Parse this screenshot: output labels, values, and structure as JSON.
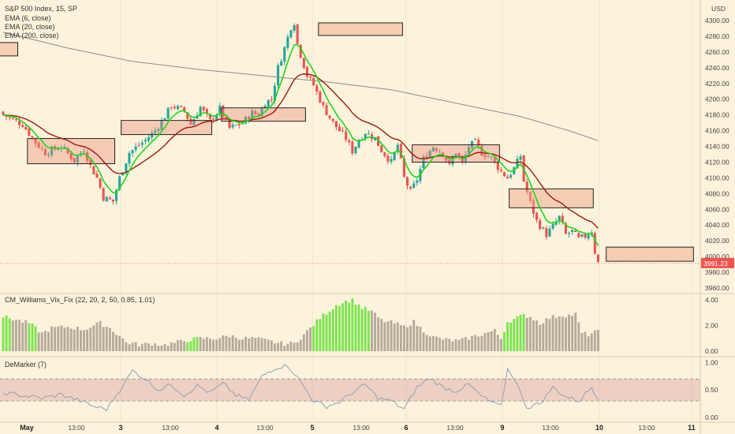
{
  "chart_data": {
    "type": "candlestick",
    "title": "S&P 500 Index, 15, SP",
    "currency": "USD",
    "price_axis": {
      "ticks": [
        "4300.00",
        "4280.00",
        "4260.00",
        "4240.00",
        "4220.00",
        "4200.00",
        "4180.00",
        "4160.00",
        "4140.00",
        "4120.00",
        "4100.00",
        "4080.00",
        "4060.00",
        "4040.00",
        "4020.00",
        "4000.00",
        "3980.00",
        "3960.00"
      ],
      "min": 3950,
      "max": 4320,
      "last_price": 3991.23,
      "last_price_label": "3991.23"
    },
    "x_labels": [
      "May",
      "13:00",
      "3",
      "13:00",
      "4",
      "13:00",
      "5",
      "13:00",
      "6",
      "13:00",
      "9",
      "13:00",
      "10",
      "13:00",
      "11"
    ],
    "session_labels": [
      "May",
      "3",
      "4",
      "5",
      "6",
      "9",
      "10",
      "11"
    ],
    "indicators": [
      {
        "name": "EMA (6, close)",
        "color": "#22d31d"
      },
      {
        "name": "EMA (20, close)",
        "color": "#9b1c0e"
      },
      {
        "name": "EMA (200, close)",
        "color": "#8c8c8c"
      }
    ],
    "up_color": "#26a69a",
    "down_color": "#ef5350",
    "candle_anchors": [
      [
        0,
        4180
      ],
      [
        6,
        4168
      ],
      [
        10,
        4145
      ],
      [
        13,
        4132
      ],
      [
        18,
        4140
      ],
      [
        22,
        4122
      ],
      [
        25,
        4137
      ],
      [
        27,
        4115
      ],
      [
        29,
        4100
      ],
      [
        31,
        4075
      ],
      [
        34,
        4070
      ],
      [
        36,
        4100
      ],
      [
        39,
        4132
      ],
      [
        44,
        4148
      ],
      [
        47,
        4160
      ],
      [
        50,
        4178
      ],
      [
        52,
        4192
      ],
      [
        56,
        4185
      ],
      [
        58,
        4168
      ],
      [
        61,
        4190
      ],
      [
        64,
        4172
      ],
      [
        67,
        4188
      ],
      [
        70,
        4163
      ],
      [
        74,
        4170
      ],
      [
        77,
        4183
      ],
      [
        79,
        4180
      ],
      [
        81,
        4196
      ],
      [
        83,
        4200
      ],
      [
        85,
        4240
      ],
      [
        87,
        4265
      ],
      [
        89,
        4292
      ],
      [
        90,
        4298
      ],
      [
        91,
        4270
      ],
      [
        94,
        4230
      ],
      [
        96,
        4218
      ],
      [
        99,
        4190
      ],
      [
        102,
        4170
      ],
      [
        106,
        4150
      ],
      [
        108,
        4134
      ],
      [
        110,
        4148
      ],
      [
        112,
        4158
      ],
      [
        115,
        4150
      ],
      [
        117,
        4135
      ],
      [
        120,
        4120
      ],
      [
        122,
        4142
      ],
      [
        124,
        4100
      ],
      [
        126,
        4082
      ],
      [
        128,
        4098
      ],
      [
        130,
        4124
      ],
      [
        133,
        4140
      ],
      [
        136,
        4132
      ],
      [
        138,
        4115
      ],
      [
        140,
        4133
      ],
      [
        142,
        4118
      ],
      [
        144,
        4140
      ],
      [
        146,
        4145
      ],
      [
        148,
        4132
      ],
      [
        151,
        4125
      ],
      [
        154,
        4108
      ],
      [
        156,
        4100
      ],
      [
        158,
        4112
      ],
      [
        160,
        4128
      ],
      [
        161,
        4096
      ],
      [
        163,
        4068
      ],
      [
        165,
        4045
      ],
      [
        168,
        4028
      ],
      [
        170,
        4038
      ],
      [
        172,
        4050
      ],
      [
        174,
        4028
      ],
      [
        176,
        4032
      ],
      [
        178,
        4022
      ],
      [
        180,
        4026
      ],
      [
        182,
        4033
      ],
      [
        183,
        4006
      ],
      [
        184,
        3992
      ]
    ],
    "ema200_anchors": [
      [
        0,
        4285
      ],
      [
        20,
        4265
      ],
      [
        40,
        4248
      ],
      [
        60,
        4238
      ],
      [
        80,
        4230
      ],
      [
        100,
        4222
      ],
      [
        120,
        4212
      ],
      [
        140,
        4195
      ],
      [
        160,
        4178
      ],
      [
        175,
        4160
      ],
      [
        185,
        4146
      ]
    ],
    "boxes": [
      {
        "start": 8,
        "end": 35,
        "top": 4150,
        "bottom": 4118,
        "style": "range"
      },
      {
        "start": 37,
        "end": 65,
        "top": 4173,
        "bottom": 4155,
        "style": "range"
      },
      {
        "start": 68,
        "end": 94,
        "top": 4189,
        "bottom": 4172,
        "style": "range"
      },
      {
        "start": 98,
        "end": 124,
        "top": 4297,
        "bottom": 4281,
        "style": "target"
      },
      {
        "start": -2,
        "end": 5,
        "top": 4272,
        "bottom": 4255,
        "style": "target"
      },
      {
        "start": 127,
        "end": 154,
        "top": 4142,
        "bottom": 4120,
        "style": "range"
      },
      {
        "start": 157,
        "end": 183,
        "top": 4086,
        "bottom": 4062,
        "style": "target"
      },
      {
        "start": 187,
        "end": 214,
        "top": 4012,
        "bottom": 3994,
        "style": "target"
      }
    ],
    "vix": {
      "label": "CM_Williams_Vix_Fix (22, 20, 2, 50, 0.85, 1.01)",
      "axis_ticks": [
        "4.00",
        "2.00",
        "0.00"
      ],
      "min": 0,
      "max": 4.2,
      "anchors": [
        [
          0,
          2.7
        ],
        [
          8,
          2.2
        ],
        [
          12,
          1.4
        ],
        [
          15,
          1.8
        ],
        [
          20,
          1.9
        ],
        [
          25,
          1.7
        ],
        [
          28,
          2.0
        ],
        [
          30,
          2.2
        ],
        [
          33,
          1.8
        ],
        [
          36,
          1.2
        ],
        [
          38,
          0.7
        ],
        [
          42,
          0.5
        ],
        [
          46,
          0.6
        ],
        [
          50,
          0.5
        ],
        [
          54,
          0.7
        ],
        [
          58,
          0.9
        ],
        [
          61,
          1.0
        ],
        [
          66,
          1.0
        ],
        [
          70,
          1.2
        ],
        [
          74,
          1.0
        ],
        [
          78,
          1.0
        ],
        [
          82,
          0.8
        ],
        [
          86,
          0.6
        ],
        [
          90,
          0.6
        ],
        [
          93,
          1.3
        ],
        [
          95,
          1.8
        ],
        [
          98,
          2.6
        ],
        [
          101,
          3.2
        ],
        [
          103,
          3.6
        ],
        [
          106,
          3.9
        ],
        [
          108,
          4.0
        ],
        [
          111,
          3.4
        ],
        [
          114,
          3.1
        ],
        [
          117,
          2.4
        ],
        [
          121,
          2.2
        ],
        [
          124,
          1.9
        ],
        [
          127,
          2.3
        ],
        [
          130,
          1.6
        ],
        [
          133,
          1.1
        ],
        [
          137,
          0.9
        ],
        [
          141,
          0.8
        ],
        [
          145,
          1.1
        ],
        [
          149,
          1.4
        ],
        [
          152,
          1.6
        ],
        [
          154,
          1.0
        ],
        [
          156,
          2.3
        ],
        [
          159,
          2.6
        ],
        [
          161,
          2.8
        ],
        [
          163,
          2.7
        ],
        [
          166,
          2.2
        ],
        [
          169,
          2.6
        ],
        [
          172,
          2.8
        ],
        [
          175,
          2.8
        ],
        [
          177,
          2.9
        ],
        [
          179,
          1.4
        ],
        [
          181,
          1.3
        ],
        [
          183,
          1.5
        ]
      ],
      "green_ranges": [
        [
          0,
          2
        ],
        [
          8,
          10
        ],
        [
          57,
          60
        ],
        [
          96,
          113
        ],
        [
          155,
          161
        ]
      ],
      "green_color": "#7be34f",
      "gray_color": "#b5aa9a"
    },
    "demarker": {
      "label": "DeMarker (7)",
      "axis_ticks": [
        "1.00",
        "0.50",
        "0.00"
      ],
      "min": 0,
      "max": 1.05,
      "band": [
        0.3,
        0.7
      ],
      "anchors": [
        [
          0,
          0.45
        ],
        [
          6,
          0.4
        ],
        [
          12,
          0.35
        ],
        [
          18,
          0.42
        ],
        [
          24,
          0.3
        ],
        [
          28,
          0.2
        ],
        [
          32,
          0.15
        ],
        [
          36,
          0.5
        ],
        [
          40,
          0.85
        ],
        [
          44,
          0.7
        ],
        [
          48,
          0.5
        ],
        [
          52,
          0.6
        ],
        [
          56,
          0.4
        ],
        [
          60,
          0.58
        ],
        [
          64,
          0.45
        ],
        [
          68,
          0.62
        ],
        [
          72,
          0.4
        ],
        [
          76,
          0.32
        ],
        [
          80,
          0.75
        ],
        [
          84,
          0.9
        ],
        [
          88,
          0.95
        ],
        [
          92,
          0.65
        ],
        [
          96,
          0.3
        ],
        [
          100,
          0.2
        ],
        [
          104,
          0.28
        ],
        [
          108,
          0.45
        ],
        [
          112,
          0.6
        ],
        [
          116,
          0.35
        ],
        [
          120,
          0.3
        ],
        [
          124,
          0.15
        ],
        [
          128,
          0.55
        ],
        [
          132,
          0.72
        ],
        [
          136,
          0.55
        ],
        [
          140,
          0.48
        ],
        [
          144,
          0.6
        ],
        [
          148,
          0.38
        ],
        [
          152,
          0.25
        ],
        [
          154,
          0.2
        ],
        [
          156,
          0.88
        ],
        [
          158,
          0.72
        ],
        [
          162,
          0.18
        ],
        [
          166,
          0.25
        ],
        [
          170,
          0.55
        ],
        [
          174,
          0.38
        ],
        [
          178,
          0.3
        ],
        [
          182,
          0.55
        ],
        [
          184,
          0.35
        ]
      ]
    }
  }
}
